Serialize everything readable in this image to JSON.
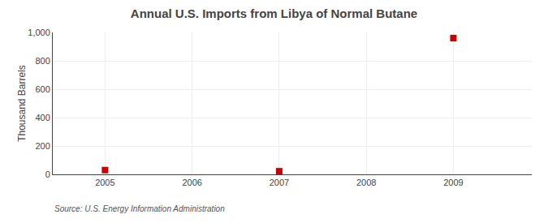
{
  "chart_data": {
    "type": "scatter",
    "title": "Annual U.S. Imports from Libya of Normal Butane",
    "ylabel": "Thousand Barrels",
    "annotations": [
      "Source: U.S. Energy Information Administration"
    ],
    "x": [
      2005,
      2007,
      2009
    ],
    "values": [
      30,
      22,
      960
    ],
    "color": "#cc0000",
    "marker": "square",
    "xlim": [
      2004.4,
      2009.9
    ],
    "xticks": [
      2005,
      2006,
      2007,
      2008,
      2009
    ],
    "ylim": [
      0,
      1000
    ],
    "yticks": [
      0,
      200,
      400,
      600,
      800,
      {
        "value": 1000,
        "label": "1,000"
      }
    ],
    "grid": true
  }
}
